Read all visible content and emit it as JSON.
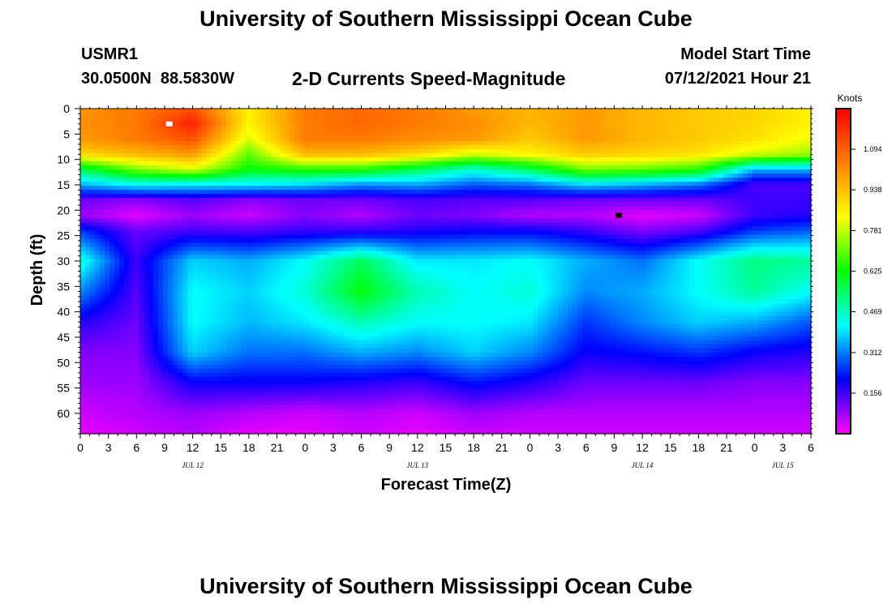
{
  "header": {
    "title": "University of Southern Mississippi Ocean Cube",
    "station_id": "USMR1",
    "coordinates": "30.0500N  88.5830W",
    "model_start_label": "Model Start Time",
    "model_start_value": "07/12/2021 Hour 21"
  },
  "footer": {
    "title": "University of Southern Mississippi Ocean Cube"
  },
  "chart_data": {
    "type": "heatmap",
    "title": "2-D Currents Speed-Magnitude",
    "xlabel": "Forecast Time(Z)",
    "ylabel": "Depth (ft)",
    "x_tick_labels": [
      "0",
      "3",
      "6",
      "9",
      "12",
      "15",
      "18",
      "21",
      "0",
      "3",
      "6",
      "9",
      "12",
      "15",
      "18",
      "21",
      "0",
      "3",
      "6",
      "9",
      "12",
      "15",
      "18",
      "21",
      "0",
      "3",
      "6"
    ],
    "x_date_labels": [
      {
        "label": "JUL 12",
        "tick_index": 4
      },
      {
        "label": "JUL 13",
        "tick_index": 12
      },
      {
        "label": "JUL 14",
        "tick_index": 20
      },
      {
        "label": "JUL 15",
        "tick_index": 25
      }
    ],
    "xlim_hours": [
      0,
      78
    ],
    "y_ticks": [
      0,
      5,
      10,
      15,
      20,
      25,
      30,
      35,
      40,
      45,
      50,
      55,
      60
    ],
    "ylim": [
      0,
      64
    ],
    "y_inverted": true,
    "colorbar": {
      "unit_label": "Knots",
      "ticks": [
        1.094,
        0.938,
        0.781,
        0.625,
        0.469,
        0.312,
        0.156
      ],
      "tick_labels": [
        "1.094",
        "0.938",
        "0.781",
        "0.625",
        "0.469",
        "0.312",
        "0.156"
      ],
      "range": [
        0,
        1.25
      ],
      "colors": [
        "#ff00ff",
        "#0000ff",
        "#00ffff",
        "#00ff00",
        "#ffff00",
        "#ff8000",
        "#ff0000"
      ]
    },
    "grid": {
      "hours": [
        0,
        6,
        12,
        18,
        24,
        30,
        36,
        42,
        48,
        54,
        60,
        66,
        72,
        78
      ],
      "depths": [
        0,
        3,
        6,
        9,
        12,
        15,
        18,
        21,
        24,
        30,
        36,
        42,
        48,
        54,
        60,
        64
      ],
      "values": [
        [
          1.0,
          1.05,
          1.12,
          0.85,
          1.05,
          1.08,
          1.05,
          1.0,
          0.95,
          1.0,
          0.95,
          0.92,
          0.9,
          0.85
        ],
        [
          1.02,
          1.05,
          1.2,
          0.85,
          1.05,
          1.08,
          1.05,
          1.02,
          0.95,
          1.0,
          0.95,
          0.92,
          0.9,
          0.85
        ],
        [
          1.0,
          1.05,
          1.12,
          0.8,
          1.05,
          1.05,
          1.02,
          1.0,
          0.92,
          1.0,
          0.95,
          0.92,
          0.88,
          0.82
        ],
        [
          0.9,
          0.95,
          1.0,
          0.7,
          0.95,
          0.95,
          0.9,
          0.8,
          0.85,
          0.92,
          0.9,
          0.88,
          0.8,
          0.75
        ],
        [
          0.55,
          0.72,
          0.8,
          0.62,
          0.65,
          0.65,
          0.55,
          0.45,
          0.55,
          0.72,
          0.7,
          0.65,
          0.35,
          0.35
        ],
        [
          0.35,
          0.42,
          0.4,
          0.4,
          0.38,
          0.32,
          0.34,
          0.28,
          0.3,
          0.38,
          0.35,
          0.3,
          0.15,
          0.15
        ],
        [
          0.12,
          0.1,
          0.14,
          0.1,
          0.12,
          0.12,
          0.15,
          0.14,
          0.14,
          0.12,
          0.12,
          0.12,
          0.16,
          0.16
        ],
        [
          0.08,
          0.02,
          0.08,
          0.04,
          0.1,
          0.06,
          0.12,
          0.1,
          0.06,
          0.06,
          0.02,
          0.04,
          0.16,
          0.18
        ],
        [
          0.25,
          0.12,
          0.15,
          0.14,
          0.16,
          0.16,
          0.18,
          0.2,
          0.2,
          0.16,
          0.1,
          0.14,
          0.25,
          0.28
        ],
        [
          0.45,
          0.16,
          0.38,
          0.35,
          0.42,
          0.55,
          0.4,
          0.4,
          0.42,
          0.35,
          0.3,
          0.42,
          0.52,
          0.5
        ],
        [
          0.32,
          0.14,
          0.42,
          0.38,
          0.45,
          0.62,
          0.48,
          0.42,
          0.45,
          0.32,
          0.35,
          0.42,
          0.5,
          0.42
        ],
        [
          0.18,
          0.12,
          0.42,
          0.36,
          0.4,
          0.48,
          0.42,
          0.42,
          0.4,
          0.25,
          0.32,
          0.38,
          0.35,
          0.28
        ],
        [
          0.1,
          0.1,
          0.38,
          0.3,
          0.3,
          0.35,
          0.32,
          0.38,
          0.32,
          0.2,
          0.22,
          0.25,
          0.2,
          0.18
        ],
        [
          0.08,
          0.08,
          0.2,
          0.2,
          0.2,
          0.18,
          0.16,
          0.22,
          0.18,
          0.12,
          0.12,
          0.12,
          0.1,
          0.1
        ],
        [
          0.04,
          0.06,
          0.08,
          0.06,
          0.04,
          0.06,
          0.04,
          0.08,
          0.06,
          0.06,
          0.06,
          0.06,
          0.06,
          0.06
        ],
        [
          0.02,
          0.04,
          0.06,
          0.02,
          0.02,
          0.04,
          0.02,
          0.04,
          0.04,
          0.04,
          0.04,
          0.04,
          0.04,
          0.04
        ]
      ]
    },
    "markers": [
      {
        "hour": 9.5,
        "depth": 3,
        "color": "#ffffff"
      },
      {
        "hour": 57.5,
        "depth": 21,
        "color": "#000000"
      }
    ]
  }
}
